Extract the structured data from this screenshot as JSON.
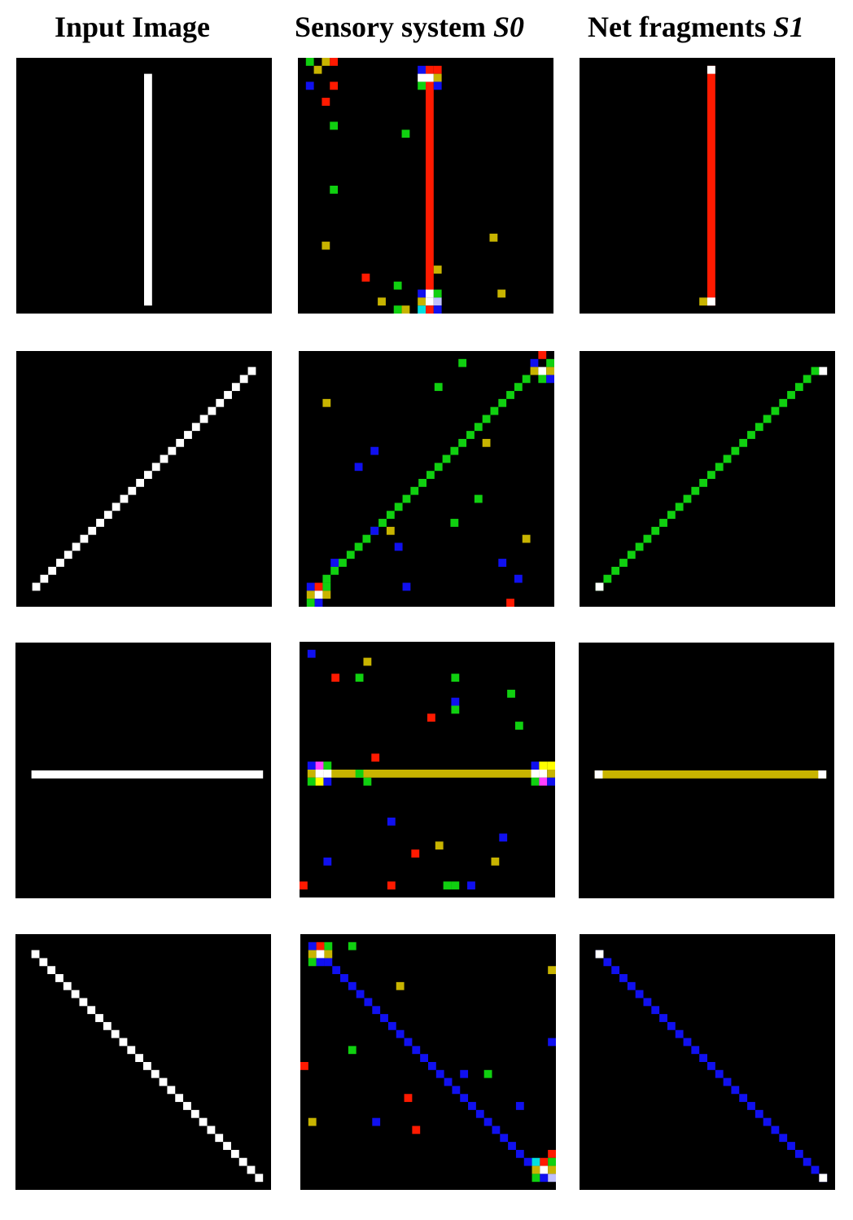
{
  "headers": {
    "input": "Input Image",
    "sensory_prefix": "Sensory system ",
    "sensory_symbol": "S0",
    "net_prefix": "Net fragments ",
    "net_symbol": "S1"
  },
  "colors": {
    "background": "#000000",
    "white": "#ffffff",
    "red": "#ff1a00",
    "green": "#10d010",
    "blue": "#1010f0",
    "olive": "#c8b400",
    "yellow": "#ffff00",
    "cyan": "#00e0e0",
    "magenta": "#ff40ff",
    "lavender": "#c0c0ff"
  },
  "grid": {
    "cells": 32
  },
  "rows": [
    {
      "orientation": "vertical",
      "input": {
        "type": "vline",
        "col": 16,
        "from": 2,
        "to": 30,
        "color": "white"
      },
      "s0": {
        "line": {
          "type": "vline",
          "col": 16,
          "from": 3,
          "to": 28,
          "color": "red"
        },
        "cells": [
          [
            1,
            0,
            "green"
          ],
          [
            3,
            0,
            "olive"
          ],
          [
            4,
            0,
            "red"
          ],
          [
            15,
            1,
            "blue"
          ],
          [
            16,
            1,
            "red"
          ],
          [
            17,
            1,
            "red"
          ],
          [
            2,
            1,
            "olive"
          ],
          [
            15,
            2,
            "white"
          ],
          [
            16,
            2,
            "white"
          ],
          [
            17,
            2,
            "olive"
          ],
          [
            15,
            3,
            "green"
          ],
          [
            17,
            3,
            "blue"
          ],
          [
            1,
            3,
            "blue"
          ],
          [
            4,
            3,
            "red"
          ],
          [
            3,
            5,
            "red"
          ],
          [
            4,
            8,
            "green"
          ],
          [
            13,
            9,
            "green"
          ],
          [
            4,
            16,
            "green"
          ],
          [
            24,
            22,
            "olive"
          ],
          [
            3,
            23,
            "olive"
          ],
          [
            17,
            26,
            "olive"
          ],
          [
            8,
            27,
            "red"
          ],
          [
            12,
            28,
            "green"
          ],
          [
            15,
            29,
            "blue"
          ],
          [
            16,
            29,
            "white"
          ],
          [
            17,
            29,
            "green"
          ],
          [
            25,
            29,
            "olive"
          ],
          [
            15,
            30,
            "olive"
          ],
          [
            16,
            30,
            "white"
          ],
          [
            17,
            30,
            "lavender"
          ],
          [
            10,
            30,
            "olive"
          ],
          [
            15,
            31,
            "cyan"
          ],
          [
            16,
            31,
            "red"
          ],
          [
            17,
            31,
            "blue"
          ],
          [
            12,
            31,
            "green"
          ],
          [
            13,
            31,
            "olive"
          ]
        ]
      },
      "s1": {
        "line": {
          "type": "vline",
          "col": 16,
          "from": 1,
          "to": 30,
          "color": "red"
        },
        "cells": [
          [
            16,
            1,
            "white"
          ],
          [
            16,
            30,
            "white"
          ],
          [
            15,
            30,
            "olive"
          ]
        ]
      }
    },
    {
      "orientation": "diagonal-up",
      "input": {
        "type": "diag_up",
        "from": 2,
        "to": 29,
        "color": "white"
      },
      "s0": {
        "line": {
          "type": "diag_up",
          "from": 3,
          "to": 28,
          "color": "green"
        },
        "cells": [
          [
            29,
            1,
            "blue"
          ],
          [
            30,
            0,
            "red"
          ],
          [
            31,
            1,
            "green"
          ],
          [
            29,
            2,
            "olive"
          ],
          [
            30,
            2,
            "white"
          ],
          [
            31,
            2,
            "olive"
          ],
          [
            30,
            3,
            "green"
          ],
          [
            31,
            3,
            "blue"
          ],
          [
            20,
            1,
            "green"
          ],
          [
            17,
            4,
            "green"
          ],
          [
            3,
            6,
            "olive"
          ],
          [
            23,
            11,
            "olive"
          ],
          [
            9,
            12,
            "blue"
          ],
          [
            7,
            14,
            "blue"
          ],
          [
            22,
            18,
            "green"
          ],
          [
            19,
            21,
            "green"
          ],
          [
            9,
            22,
            "blue"
          ],
          [
            11,
            22,
            "olive"
          ],
          [
            12,
            24,
            "blue"
          ],
          [
            28,
            23,
            "olive"
          ],
          [
            4,
            26,
            "blue"
          ],
          [
            25,
            26,
            "blue"
          ],
          [
            27,
            28,
            "blue"
          ],
          [
            13,
            29,
            "blue"
          ],
          [
            1,
            29,
            "blue"
          ],
          [
            2,
            29,
            "red"
          ],
          [
            3,
            29,
            "green"
          ],
          [
            1,
            30,
            "olive"
          ],
          [
            2,
            30,
            "white"
          ],
          [
            3,
            30,
            "olive"
          ],
          [
            1,
            31,
            "green"
          ],
          [
            2,
            31,
            "blue"
          ],
          [
            26,
            31,
            "red"
          ]
        ]
      },
      "s1": {
        "line": {
          "type": "diag_up",
          "from": 2,
          "to": 29,
          "color": "green"
        },
        "cells": [
          [
            2,
            29,
            "white"
          ],
          [
            30,
            2,
            "white"
          ]
        ]
      }
    },
    {
      "orientation": "horizontal",
      "input": {
        "type": "hline",
        "row": 16,
        "from": 2,
        "to": 30,
        "color": "white"
      },
      "s0": {
        "line": {
          "type": "hline",
          "row": 16,
          "from": 3,
          "to": 29,
          "color": "olive"
        },
        "cells": [
          [
            1,
            1,
            "blue"
          ],
          [
            8,
            2,
            "olive"
          ],
          [
            4,
            4,
            "red"
          ],
          [
            7,
            4,
            "green"
          ],
          [
            19,
            4,
            "green"
          ],
          [
            26,
            6,
            "green"
          ],
          [
            19,
            7,
            "blue"
          ],
          [
            19,
            8,
            "green"
          ],
          [
            16,
            9,
            "red"
          ],
          [
            27,
            10,
            "green"
          ],
          [
            9,
            14,
            "red"
          ],
          [
            1,
            15,
            "blue"
          ],
          [
            2,
            15,
            "magenta"
          ],
          [
            3,
            15,
            "green"
          ],
          [
            1,
            16,
            "olive"
          ],
          [
            2,
            16,
            "white"
          ],
          [
            3,
            16,
            "white"
          ],
          [
            7,
            16,
            "green"
          ],
          [
            1,
            17,
            "green"
          ],
          [
            2,
            17,
            "yellow"
          ],
          [
            3,
            17,
            "blue"
          ],
          [
            8,
            17,
            "green"
          ],
          [
            29,
            15,
            "blue"
          ],
          [
            30,
            15,
            "yellow"
          ],
          [
            31,
            15,
            "yellow"
          ],
          [
            29,
            16,
            "white"
          ],
          [
            30,
            16,
            "white"
          ],
          [
            31,
            16,
            "olive"
          ],
          [
            29,
            17,
            "green"
          ],
          [
            30,
            17,
            "magenta"
          ],
          [
            31,
            17,
            "blue"
          ],
          [
            11,
            22,
            "blue"
          ],
          [
            25,
            24,
            "blue"
          ],
          [
            17,
            25,
            "olive"
          ],
          [
            14,
            26,
            "red"
          ],
          [
            3,
            27,
            "blue"
          ],
          [
            24,
            27,
            "olive"
          ],
          [
            0,
            30,
            "red"
          ],
          [
            11,
            30,
            "red"
          ],
          [
            18,
            30,
            "green"
          ],
          [
            19,
            30,
            "green"
          ],
          [
            21,
            30,
            "blue"
          ]
        ]
      },
      "s1": {
        "line": {
          "type": "hline",
          "row": 16,
          "from": 2,
          "to": 30,
          "color": "olive"
        },
        "cells": [
          [
            2,
            16,
            "white"
          ],
          [
            30,
            16,
            "white"
          ]
        ]
      }
    },
    {
      "orientation": "diagonal-down",
      "input": {
        "type": "diag_down",
        "from": 2,
        "to": 30,
        "color": "white"
      },
      "s0": {
        "line": {
          "type": "diag_down",
          "from": 3,
          "to": 29,
          "color": "blue"
        },
        "cells": [
          [
            1,
            1,
            "blue"
          ],
          [
            2,
            1,
            "red"
          ],
          [
            3,
            1,
            "green"
          ],
          [
            1,
            2,
            "olive"
          ],
          [
            2,
            2,
            "white"
          ],
          [
            3,
            2,
            "olive"
          ],
          [
            1,
            3,
            "green"
          ],
          [
            2,
            3,
            "blue"
          ],
          [
            6,
            1,
            "green"
          ],
          [
            31,
            4,
            "olive"
          ],
          [
            12,
            6,
            "olive"
          ],
          [
            31,
            13,
            "blue"
          ],
          [
            6,
            14,
            "green"
          ],
          [
            0,
            16,
            "red"
          ],
          [
            20,
            17,
            "blue"
          ],
          [
            23,
            17,
            "green"
          ],
          [
            13,
            20,
            "red"
          ],
          [
            27,
            21,
            "blue"
          ],
          [
            1,
            23,
            "olive"
          ],
          [
            9,
            23,
            "blue"
          ],
          [
            14,
            24,
            "red"
          ],
          [
            31,
            27,
            "red"
          ],
          [
            29,
            28,
            "cyan"
          ],
          [
            30,
            28,
            "red"
          ],
          [
            31,
            28,
            "green"
          ],
          [
            29,
            29,
            "olive"
          ],
          [
            30,
            29,
            "white"
          ],
          [
            31,
            29,
            "olive"
          ],
          [
            29,
            30,
            "green"
          ],
          [
            30,
            30,
            "blue"
          ],
          [
            31,
            30,
            "lavender"
          ]
        ]
      },
      "s1": {
        "line": {
          "type": "diag_down",
          "from": 2,
          "to": 30,
          "color": "blue"
        },
        "cells": [
          [
            2,
            2,
            "white"
          ],
          [
            30,
            30,
            "white"
          ]
        ]
      }
    }
  ]
}
